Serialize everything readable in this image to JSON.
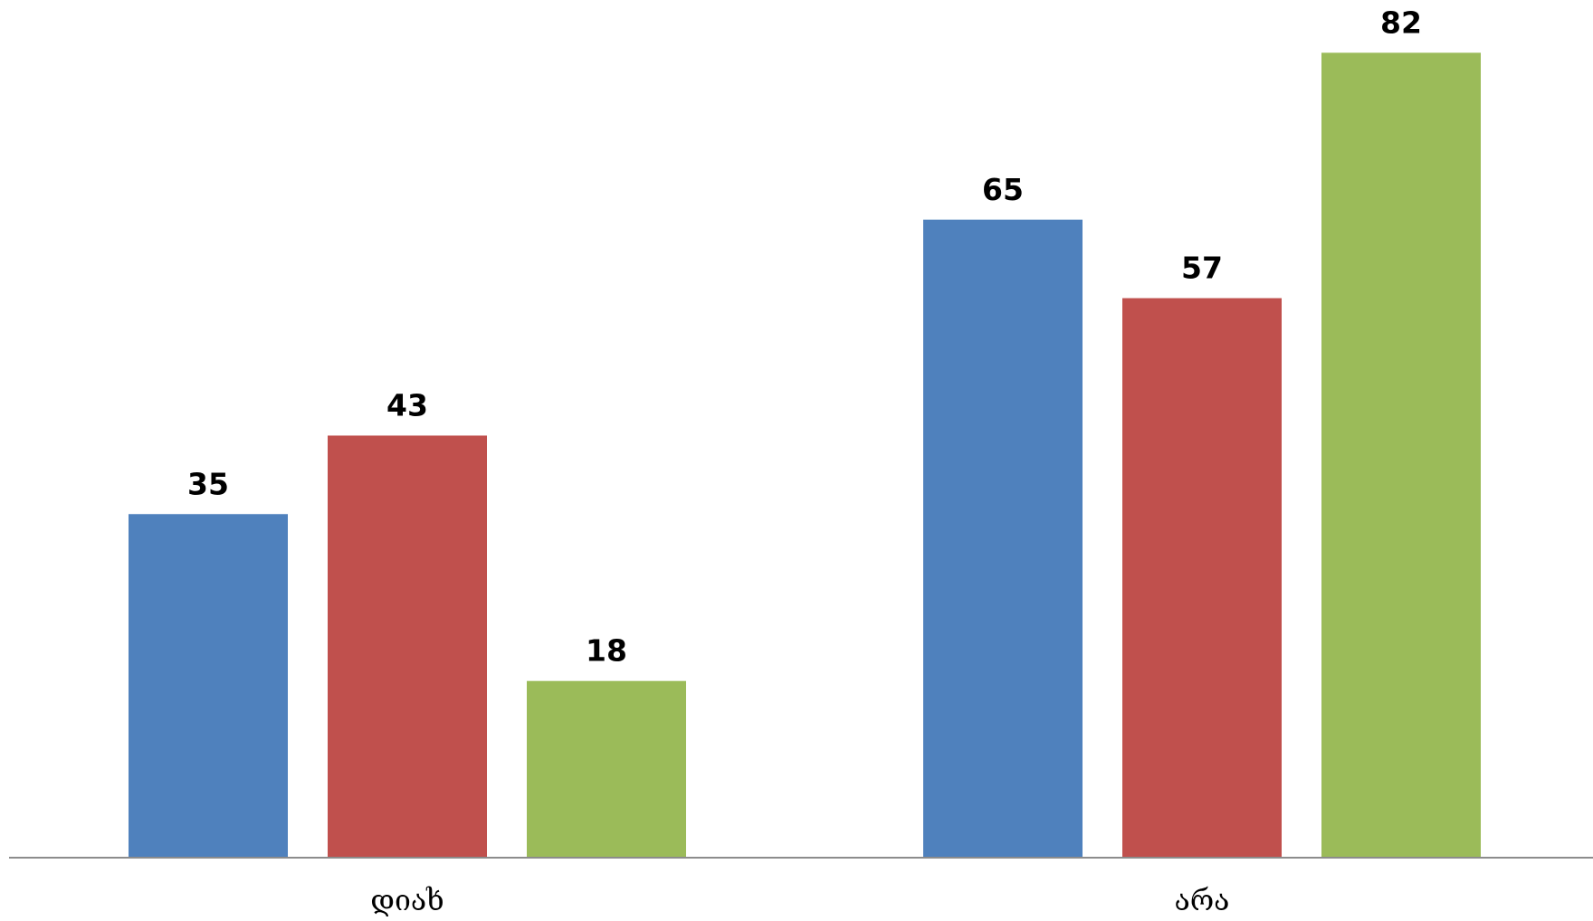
{
  "chart_data": {
    "type": "bar",
    "categories": [
      "დიახ",
      "არა"
    ],
    "series": [
      {
        "values": [
          35,
          65
        ],
        "color": "#4F81BD"
      },
      {
        "values": [
          43,
          57
        ],
        "color": "#C0504D"
      },
      {
        "values": [
          18,
          82
        ],
        "color": "#9BBB59"
      }
    ],
    "ylim": [
      0,
      90
    ],
    "data_labels": true,
    "grid": false,
    "legend": "none"
  }
}
